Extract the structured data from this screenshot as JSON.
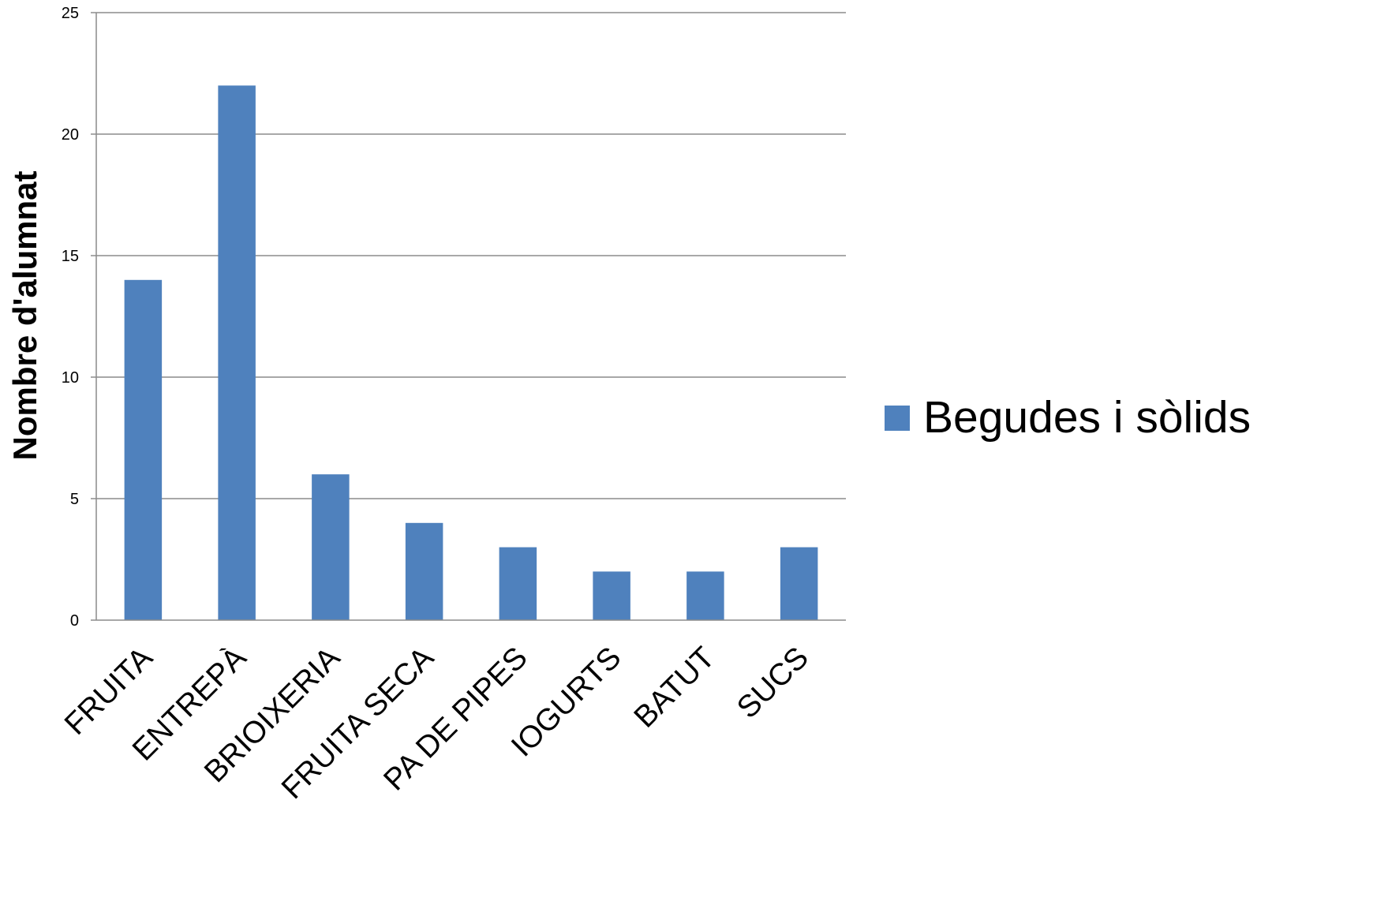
{
  "chart_data": {
    "type": "bar",
    "title": "",
    "xlabel": "",
    "ylabel": "Nombre d'alumnat",
    "categories": [
      "FRUITA",
      "ENTREPÀ",
      "BRIOIXERIA",
      "FRUITA SECA",
      "PA DE PIPES",
      "IOGURTS",
      "BATUT",
      "SUCS"
    ],
    "series": [
      {
        "name": "Begudes i sòlids",
        "color": "#4f81bd",
        "values": [
          14,
          22,
          6,
          4,
          3,
          2,
          2,
          3
        ]
      }
    ],
    "ylim": [
      0,
      25
    ],
    "yticks": [
      0,
      5,
      10,
      15,
      20,
      25
    ],
    "grid": true,
    "legend_position": "right"
  }
}
